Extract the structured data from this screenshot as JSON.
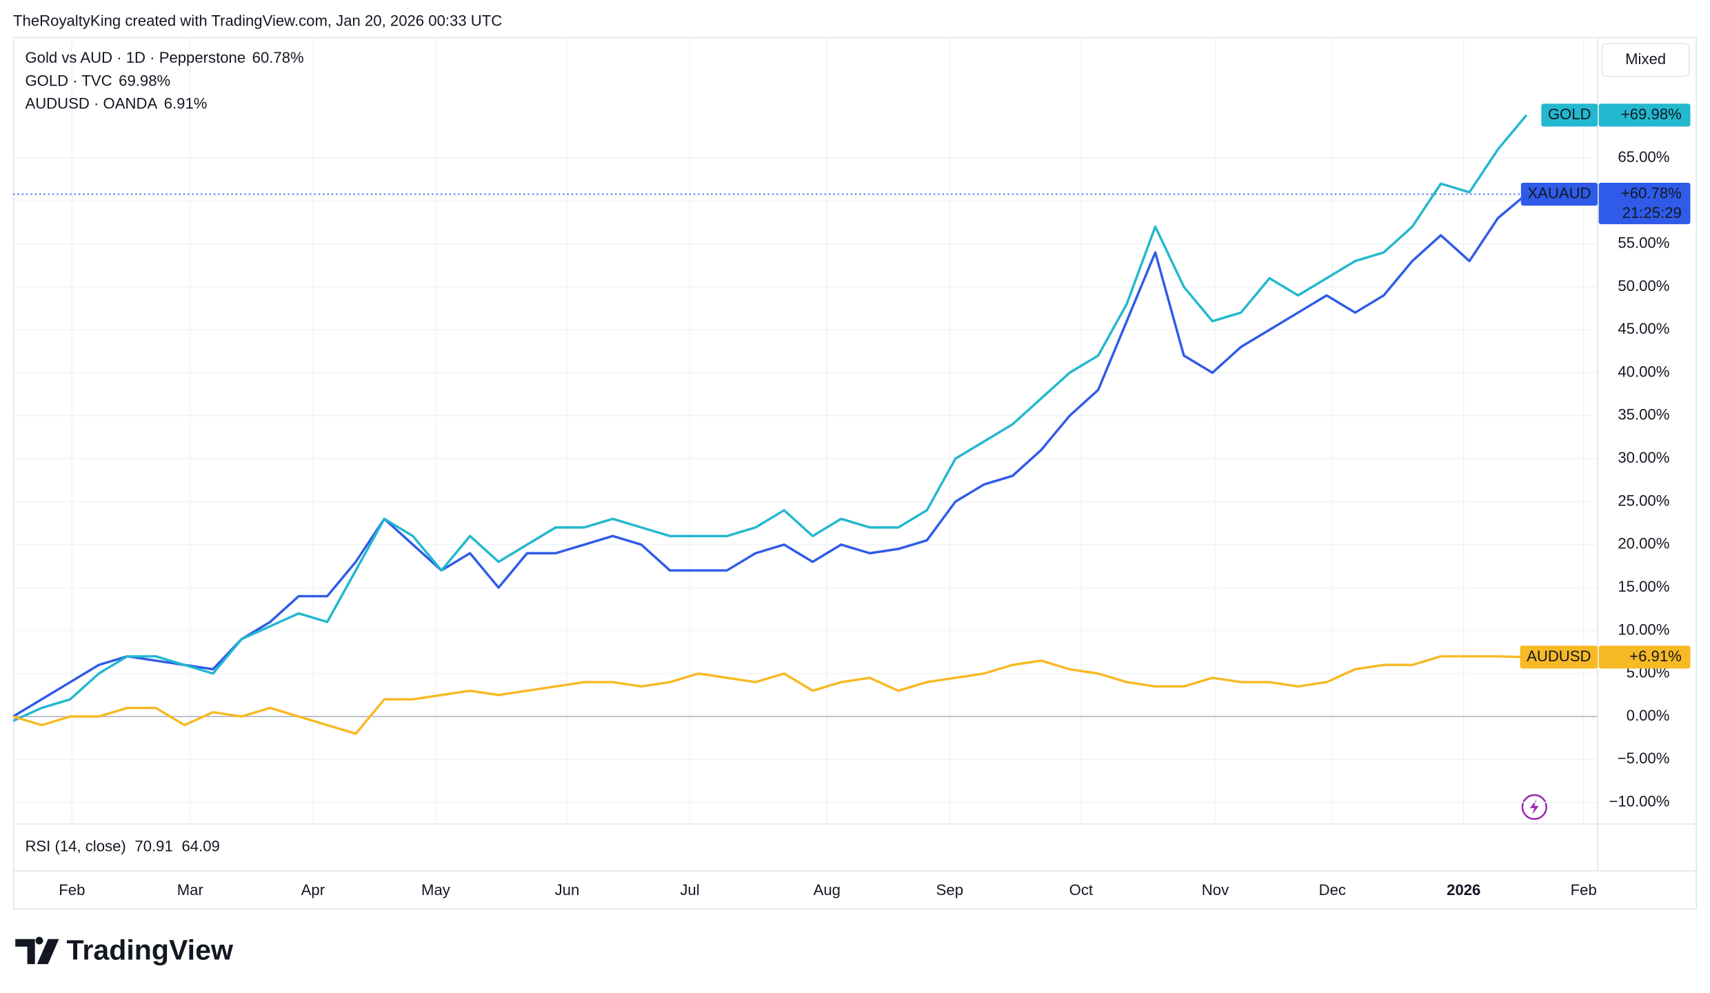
{
  "header": "TheRoyaltyKing created with TradingView.com, Jan 20, 2026 00:33 UTC",
  "scale_mode": "Mixed",
  "logo": "TradingView",
  "rsi": {
    "label": "RSI (14, close)",
    "values": [
      70.91,
      64.09
    ],
    "colors": [
      "#7e57c2",
      "#f7b924"
    ]
  },
  "chart_data": {
    "type": "line",
    "x": [
      0,
      1,
      2,
      3,
      4,
      5,
      6,
      7,
      8,
      9,
      10,
      11,
      12,
      13,
      14,
      15,
      16,
      17,
      18,
      19,
      20,
      21,
      22,
      23,
      24,
      25,
      26,
      27,
      28,
      29,
      30,
      31,
      32,
      33,
      34,
      35,
      36,
      37,
      38,
      39,
      40,
      41,
      42,
      43,
      44,
      45,
      46,
      47,
      48,
      49,
      50,
      51,
      52,
      53
    ],
    "xlim": [
      0,
      55.3
    ],
    "xticks": [
      {
        "value": 2.06,
        "label": "Feb"
      },
      {
        "value": 6.2,
        "label": "Mar"
      },
      {
        "value": 10.5,
        "label": "Apr"
      },
      {
        "value": 14.8,
        "label": "May"
      },
      {
        "value": 19.4,
        "label": "Jun"
      },
      {
        "value": 23.7,
        "label": "Jul"
      },
      {
        "value": 28.5,
        "label": "Aug"
      },
      {
        "value": 32.8,
        "label": "Sep"
      },
      {
        "value": 37.4,
        "label": "Oct"
      },
      {
        "value": 42.1,
        "label": "Nov"
      },
      {
        "value": 46.2,
        "label": "Dec"
      },
      {
        "value": 50.8,
        "label": "2026"
      },
      {
        "value": 55.0,
        "label": "Feb"
      }
    ],
    "ylim": [
      -12.44,
      79.06
    ],
    "yticks": [
      {
        "value": -10,
        "label": "−10.00%"
      },
      {
        "value": -5,
        "label": "−5.00%"
      },
      {
        "value": 0,
        "label": "0.00%"
      },
      {
        "value": 5,
        "label": "5.00%"
      },
      {
        "value": 10,
        "label": "10.00%"
      },
      {
        "value": 15,
        "label": "15.00%"
      },
      {
        "value": 20,
        "label": "20.00%"
      },
      {
        "value": 25,
        "label": "25.00%"
      },
      {
        "value": 30,
        "label": "30.00%"
      },
      {
        "value": 35,
        "label": "35.00%"
      },
      {
        "value": 40,
        "label": "40.00%"
      },
      {
        "value": 45,
        "label": "45.00%"
      },
      {
        "value": 50,
        "label": "50.00%"
      },
      {
        "value": 55,
        "label": "55.00%"
      },
      {
        "value": 60,
        "label": "60.00%"
      },
      {
        "value": 65,
        "label": "65.00%"
      }
    ],
    "grid": true,
    "series": [
      {
        "name": "Gold vs AUD · 1D · Pepperstone",
        "legend_value": "60.78%",
        "tag": "XAUAUD",
        "last_label": "+60.78%",
        "countdown": "21:25:29",
        "price_line": true,
        "color": "#2f5be8",
        "values": [
          0,
          2,
          4,
          6,
          7,
          6.5,
          6,
          5.5,
          9,
          11,
          14,
          14,
          18,
          23,
          20,
          17,
          19,
          15,
          19,
          19,
          20,
          21,
          20,
          17,
          17,
          17,
          19,
          20,
          18,
          20,
          19,
          19.5,
          20.5,
          25,
          27,
          28,
          31,
          35,
          38,
          46,
          54,
          42,
          40,
          43,
          45,
          47,
          49,
          47,
          49,
          53,
          56,
          53,
          58,
          60.78
        ]
      },
      {
        "name": "GOLD · TVC",
        "legend_value": "69.98%",
        "tag": "GOLD",
        "last_label": "+69.98%",
        "color": "#22b8cf",
        "values": [
          -0.5,
          1,
          2,
          5,
          7,
          7,
          6,
          5,
          9,
          10.5,
          12,
          11,
          17,
          23,
          21,
          17,
          21,
          18,
          20,
          22,
          22,
          23,
          22,
          21,
          21,
          21,
          22,
          24,
          21,
          23,
          22,
          22,
          24,
          30,
          32,
          34,
          37,
          40,
          42,
          48,
          57,
          50,
          46,
          47,
          51,
          49,
          51,
          53,
          54,
          57,
          62,
          61,
          66,
          69.98
        ]
      },
      {
        "name": "AUDUSD · OANDA",
        "legend_value": "6.91%",
        "tag": "AUDUSD",
        "last_label": "+6.91%",
        "color": "#f7b924",
        "values": [
          0,
          -1,
          0,
          0,
          1,
          1,
          -1,
          0.5,
          0,
          1,
          0,
          -1,
          -2,
          2,
          2,
          2.5,
          3,
          2.5,
          3,
          3.5,
          4,
          4,
          3.5,
          4,
          5,
          4.5,
          4,
          5,
          3,
          4,
          4.5,
          3,
          4,
          4.5,
          5,
          6,
          6.5,
          5.5,
          5,
          4,
          3.5,
          3.5,
          4.5,
          4,
          4,
          3.5,
          4,
          5.5,
          6,
          6,
          7,
          7,
          7,
          6.91
        ]
      }
    ]
  }
}
